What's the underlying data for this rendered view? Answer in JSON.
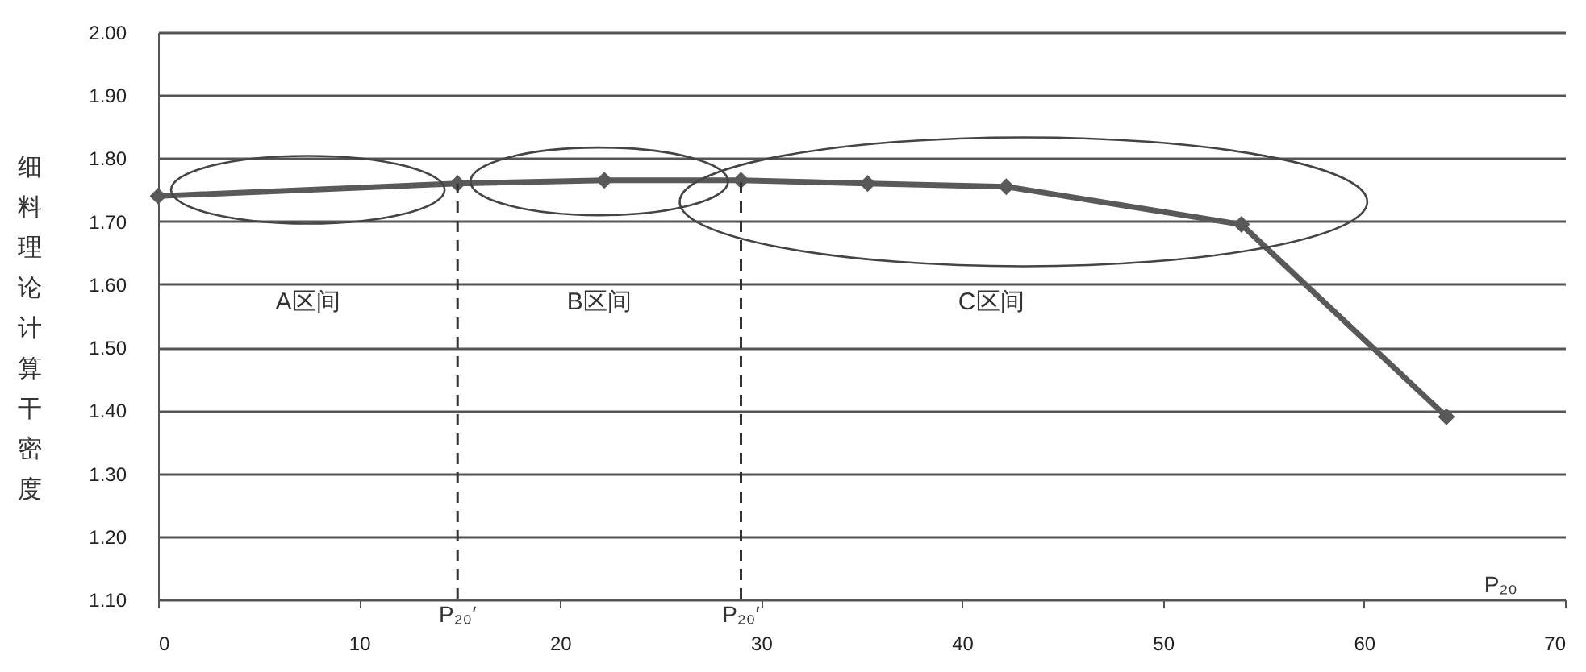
{
  "chart_data": {
    "type": "line",
    "x": [
      0,
      14.9,
      22.2,
      29.0,
      35.3,
      42.2,
      53.9,
      64.1
    ],
    "series": [
      {
        "color": "#595959",
        "values": [
          1.74,
          1.76,
          1.765,
          1.765,
          1.76,
          1.755,
          1.695,
          1.39
        ]
      }
    ],
    "xlabel": "P₂₀",
    "ylabel": "细料理论计算干密度",
    "xlim": [
      0,
      70
    ],
    "xticks": [
      0,
      10,
      20,
      30,
      40,
      50,
      60,
      70
    ],
    "ylim": [
      1.1,
      2.0
    ],
    "yticks": [
      {
        "value": 1.1,
        "label": "1.10"
      },
      {
        "value": 1.2,
        "label": "1.20"
      },
      {
        "value": 1.3,
        "label": "1.30"
      },
      {
        "value": 1.4,
        "label": "1.40"
      },
      {
        "value": 1.5,
        "label": "1.50"
      },
      {
        "value": 1.6,
        "label": "1.60"
      },
      {
        "value": 1.7,
        "label": "1.70"
      },
      {
        "value": 1.8,
        "label": "1.80"
      },
      {
        "value": 1.9,
        "label": "1.90"
      },
      {
        "value": 2.0,
        "label": "2.00"
      }
    ],
    "ref_lines": [
      {
        "axis": "x",
        "value": 14.9,
        "label": "P₂₀′",
        "line_style": "dashed"
      },
      {
        "axis": "x",
        "value": 29.0,
        "label": "P₂₀′",
        "line_style": "dashed"
      }
    ],
    "annotations": [
      "A区间",
      "B区间",
      "C区间"
    ],
    "grid": "y",
    "marker": "diamond",
    "line_style": "solid"
  }
}
